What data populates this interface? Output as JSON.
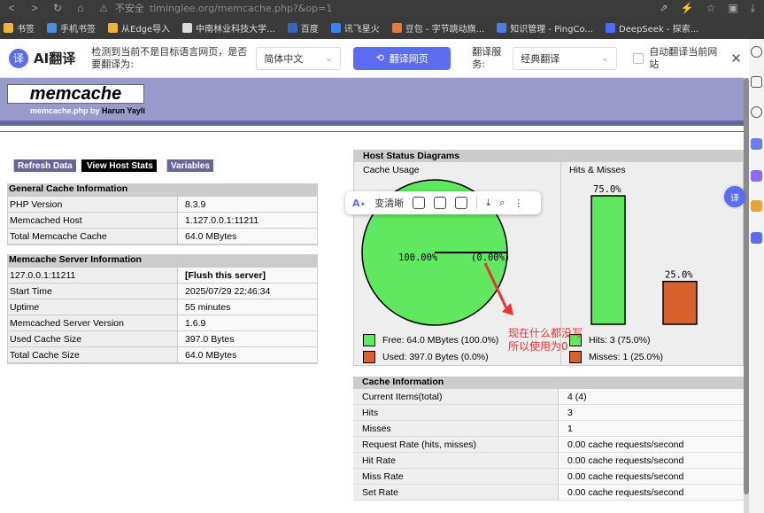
{
  "browser": {
    "insecure_label": "不安全",
    "url": "timinglee.org/memcache.php?&op=1",
    "bookmarks": [
      {
        "label": "书签",
        "color": "#f2b33d"
      },
      {
        "label": "手机书签",
        "color": "#4a90e2"
      },
      {
        "label": "从Edge导入",
        "color": "#f2b33d"
      },
      {
        "label": "中南林业科技大学...",
        "color": "#dddddd"
      },
      {
        "label": "百度",
        "color": "#3366cc"
      },
      {
        "label": "讯飞星火",
        "color": "#3b82f6"
      },
      {
        "label": "豆包 - 字节跳动旗...",
        "color": "#e57c2f"
      },
      {
        "label": "知识管理 - PingCo...",
        "color": "#4f7be8"
      },
      {
        "label": "DeepSeek - 探索...",
        "color": "#4d6bfe"
      }
    ]
  },
  "translate_bar": {
    "logo_glyph": "译",
    "name": "AI翻译",
    "detect_text": "检测到当前不是目标语言网页，是否要翻译为:",
    "target_lang": "简体中文",
    "translate_button": "翻译网页",
    "service_label": "翻译服务:",
    "service_value": "经典翻译",
    "auto_label": "自动翻译当前网站"
  },
  "header": {
    "logo": "memcache",
    "subtitle_prefix": "memcache.php by",
    "author": "Harun Yayli"
  },
  "menu": [
    {
      "label": "Refresh Data",
      "active": false
    },
    {
      "label": "View Host Stats",
      "active": true
    },
    {
      "label": "Variables",
      "active": false
    }
  ],
  "general": {
    "title": "General Cache Information",
    "rows": [
      {
        "k": "PHP Version",
        "v": "8.3.9"
      },
      {
        "k": "Memcached Host",
        "v": "1.127.0.0.1:11211"
      },
      {
        "k": "Total Memcache Cache",
        "v": "64.0 MBytes"
      }
    ]
  },
  "server": {
    "title": "Memcache Server Information",
    "rows": [
      {
        "k": "127.0.0.1:11211",
        "v": "[Flush this server]"
      },
      {
        "k": "Start Time",
        "v": "2025/07/29 22:46:34"
      },
      {
        "k": "Uptime",
        "v": "55 minutes"
      },
      {
        "k": "Memcached Server Version",
        "v": "1.6.9"
      },
      {
        "k": "Used Cache Size",
        "v": "397.0 Bytes"
      },
      {
        "k": "Total Cache Size",
        "v": "64.0 MBytes"
      }
    ]
  },
  "diagrams": {
    "title": "Host Status Diagrams",
    "cache_usage_label": "Cache Usage",
    "hits_misses_label": "Hits & Misses",
    "pie_free_label": "100.00%",
    "pie_used_label": "(0.00%)",
    "legend_free": "Free: 64.0 MBytes (100.0%)",
    "legend_used": "Used: 397.0 Bytes (0.0%)",
    "legend_hits": "Hits: 3 (75.0%)",
    "legend_misses": "Misses: 1 (25.0%)",
    "hits_pct_label": "75.0%",
    "misses_pct_label": "25.0%",
    "colors": {
      "green": "#60e860",
      "orange": "#d8622e"
    }
  },
  "chart_data": [
    {
      "type": "pie",
      "categories": [
        "Free",
        "Used"
      ],
      "values": [
        100.0,
        0.0
      ]
    },
    {
      "type": "bar",
      "categories": [
        "Hits",
        "Misses"
      ],
      "values": [
        75.0,
        25.0
      ]
    }
  ],
  "cache_info": {
    "title": "Cache Information",
    "rows": [
      {
        "k": "Current Items(total)",
        "v": "4 (4)"
      },
      {
        "k": "Hits",
        "v": "3"
      },
      {
        "k": "Misses",
        "v": "1"
      },
      {
        "k": "Request Rate (hits, misses)",
        "v": "0.00 cache requests/second"
      },
      {
        "k": "Hit Rate",
        "v": "0.00 cache requests/second"
      },
      {
        "k": "Miss Rate",
        "v": "0.00 cache requests/second"
      },
      {
        "k": "Set Rate",
        "v": "0.00 cache requests/second"
      }
    ]
  },
  "floatbar": {
    "label": "变清晰",
    "side_glyph": "译"
  },
  "annotation": {
    "line1": "现在什么都没写",
    "line2": "所以使用为0"
  }
}
